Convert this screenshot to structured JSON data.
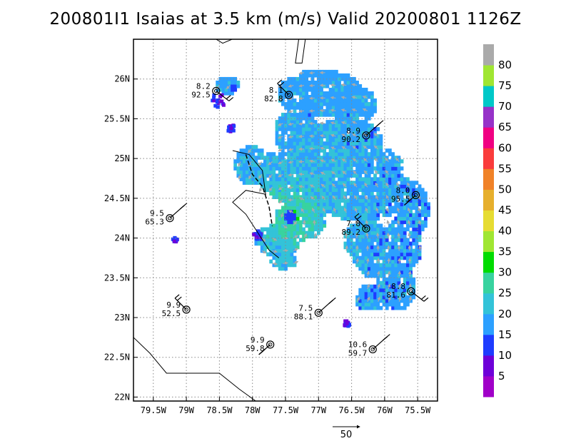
{
  "title": "200801I1 Isaias at 3.5 km (m/s) Valid 20200801 1126Z",
  "map": {
    "lon_labels": [
      "79.5W",
      "79W",
      "78.5W",
      "78W",
      "77.5W",
      "77W",
      "76.5W",
      "76W",
      "75.5W"
    ],
    "lon_values": [
      -79.5,
      -79,
      -78.5,
      -78,
      -77.5,
      -77,
      -76.5,
      -76,
      -75.5
    ],
    "lat_labels": [
      "22N",
      "22.5N",
      "23N",
      "23.5N",
      "24N",
      "24.5N",
      "25N",
      "25.5N",
      "26N"
    ],
    "lat_values": [
      22,
      22.5,
      23,
      23.5,
      24,
      24.5,
      25,
      25.5,
      26
    ],
    "lon_range": [
      -79.8,
      -75.2
    ],
    "lat_range": [
      21.95,
      26.5
    ],
    "gridlines": true,
    "storm_center": [
      -77.44,
      24.25
    ]
  },
  "colorbar": {
    "labels": [
      "5",
      "10",
      "15",
      "20",
      "25",
      "30",
      "35",
      "40",
      "45",
      "50",
      "55",
      "60",
      "65",
      "70",
      "75",
      "80"
    ],
    "colors": [
      "#a000c8",
      "#6e00d8",
      "#1e3cff",
      "#2ca0ff",
      "#33c3d8",
      "#38d39f",
      "#00dc00",
      "#a0e632",
      "#e6dc32",
      "#e6af2d",
      "#f08228",
      "#fa3c3c",
      "#f00082",
      "#9632c8",
      "#00c8c8",
      "#a0e632",
      "#aaaaaa"
    ]
  },
  "reference_vector": {
    "label": "50"
  },
  "observations": [
    {
      "v1": "8.2",
      "v2": "92.5",
      "lon": -78.55,
      "lat": 25.85
    },
    {
      "v1": "8.1",
      "v2": "82.8",
      "lon": -77.45,
      "lat": 25.8
    },
    {
      "v1": "8.9",
      "v2": "90.2",
      "lon": -76.28,
      "lat": 25.29
    },
    {
      "v1": "8.0",
      "v2": "95.5",
      "lon": -75.53,
      "lat": 24.54
    },
    {
      "v1": "9.5",
      "v2": "65.3",
      "lon": -79.25,
      "lat": 24.25
    },
    {
      "v1": "7.8",
      "v2": "89.2",
      "lon": -76.28,
      "lat": 24.12
    },
    {
      "v1": "8.8",
      "v2": "81.6",
      "lon": -75.6,
      "lat": 23.33
    },
    {
      "v1": "9.9",
      "v2": "52.5",
      "lon": -79.0,
      "lat": 23.1
    },
    {
      "v1": "7.5",
      "v2": "88.1",
      "lon": -77.0,
      "lat": 23.06
    },
    {
      "v1": "9.9",
      "v2": "59.8",
      "lon": -77.73,
      "lat": 22.66
    },
    {
      "v1": "10.6",
      "v2": "59.7",
      "lon": -76.18,
      "lat": 22.6
    }
  ]
}
